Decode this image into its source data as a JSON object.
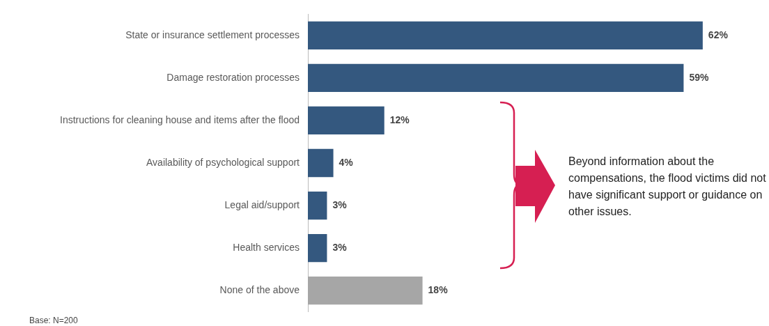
{
  "chart_data": {
    "type": "bar",
    "orientation": "horizontal",
    "categories": [
      "State or insurance settlement processes",
      "Damage restoration processes",
      "Instructions for cleaning house and items after the flood",
      "Availability of psychological support",
      "Legal aid/support",
      "Health services",
      "None of the above"
    ],
    "values": [
      62,
      59,
      12,
      4,
      3,
      3,
      18
    ],
    "value_labels": [
      "62%",
      "59%",
      "12%",
      "4%",
      "3%",
      "3%",
      "18%"
    ],
    "colors": [
      "#34587f",
      "#34587f",
      "#34587f",
      "#34587f",
      "#34587f",
      "#34587f",
      "#a6a6a6"
    ],
    "tick_labels": "y",
    "annotations": [
      "Beyond information about the compensations, the flood victims did not have significant support or guidance on other issues.",
      "Base: N=200"
    ]
  }
}
